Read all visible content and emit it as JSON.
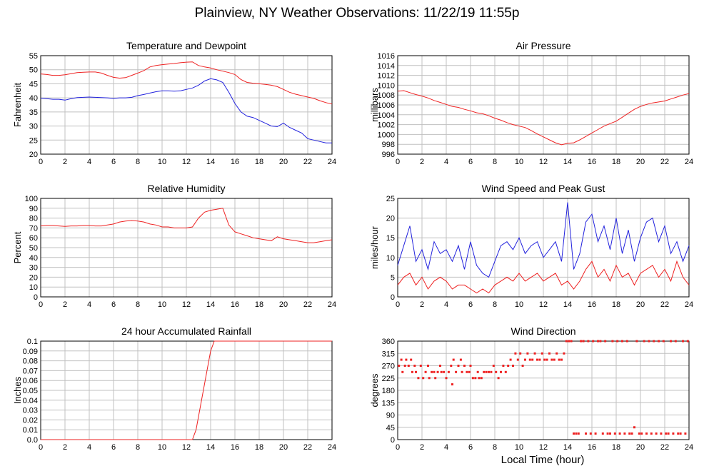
{
  "title": "Plainview, NY Weather Observations: 11/22/19 11:55p",
  "x_common_label": "Local Time (hour)",
  "colors": {
    "red": "#ee2222",
    "blue": "#2222dd"
  },
  "chart_data": [
    {
      "id": "temp",
      "type": "line",
      "title": "Temperature and Dewpoint",
      "ylabel": "Fahrenheit",
      "xlim": [
        0,
        24
      ],
      "ylim": [
        20,
        55
      ],
      "xticks": [
        0,
        2,
        4,
        6,
        8,
        10,
        12,
        14,
        16,
        18,
        20,
        22,
        24
      ],
      "yticks": [
        20,
        25,
        30,
        35,
        40,
        45,
        50,
        55
      ],
      "x": [
        0,
        0.5,
        1,
        1.5,
        2,
        2.5,
        3,
        3.5,
        4,
        4.5,
        5,
        5.5,
        6,
        6.5,
        7,
        7.5,
        8,
        8.5,
        9,
        9.5,
        10,
        10.5,
        11,
        11.5,
        12,
        12.5,
        13,
        13.5,
        14,
        14.5,
        15,
        15.5,
        16,
        16.5,
        17,
        17.5,
        18,
        18.5,
        19,
        19.5,
        20,
        20.5,
        21,
        21.5,
        22,
        22.5,
        23,
        23.5,
        24
      ],
      "series": [
        {
          "name": "",
          "color": "#ee2222",
          "values": [
            48.5,
            48.3,
            48,
            48,
            48.2,
            48.6,
            49,
            49.1,
            49.2,
            49.2,
            48.8,
            48,
            47.3,
            47,
            47.2,
            48,
            48.8,
            49.7,
            51,
            51.5,
            51.8,
            52,
            52.2,
            52.5,
            52.7,
            52.8,
            51.5,
            51,
            50.6,
            50,
            49.5,
            49,
            48.3,
            46.5,
            45.5,
            45.2,
            45,
            44.8,
            44.5,
            44,
            43,
            42,
            41.3,
            40.8,
            40.3,
            39.8,
            39,
            38.3,
            37.8
          ]
        },
        {
          "name": "",
          "color": "#2222dd",
          "values": [
            39.9,
            39.7,
            39.5,
            39.5,
            39.2,
            39.7,
            40.1,
            40.2,
            40.3,
            40.2,
            40.1,
            40,
            39.8,
            40,
            40,
            40.2,
            40.8,
            41.2,
            41.7,
            42.2,
            42.5,
            42.5,
            42.4,
            42.5,
            43,
            43.5,
            44.5,
            46,
            46.8,
            46.4,
            45.5,
            42,
            38,
            35,
            33.5,
            33,
            32,
            31,
            30,
            29.8,
            31,
            29.5,
            28.5,
            27.5,
            25.5,
            25,
            24.5,
            24,
            24
          ]
        }
      ]
    },
    {
      "id": "pressure",
      "type": "line",
      "title": "Air Pressure",
      "ylabel": "millibars",
      "xlim": [
        0,
        24
      ],
      "ylim": [
        996,
        1016
      ],
      "xticks": [
        0,
        2,
        4,
        6,
        8,
        10,
        12,
        14,
        16,
        18,
        20,
        22,
        24
      ],
      "yticks": [
        996,
        998,
        1000,
        1002,
        1004,
        1006,
        1008,
        1010,
        1012,
        1014,
        1016
      ],
      "x": [
        0,
        0.5,
        1,
        1.5,
        2,
        2.5,
        3,
        3.5,
        4,
        4.5,
        5,
        5.5,
        6,
        6.5,
        7,
        7.5,
        8,
        8.5,
        9,
        9.5,
        10,
        10.5,
        11,
        11.5,
        12,
        12.5,
        13,
        13.5,
        14,
        14.5,
        15,
        15.5,
        16,
        16.5,
        17,
        17.5,
        18,
        18.5,
        19,
        19.5,
        20,
        20.5,
        21,
        21.5,
        22,
        22.5,
        23,
        23.5,
        24
      ],
      "series": [
        {
          "name": "",
          "color": "#ee2222",
          "values": [
            1008.8,
            1008.9,
            1008.5,
            1008.1,
            1007.8,
            1007.4,
            1006.9,
            1006.5,
            1006.1,
            1005.7,
            1005.5,
            1005.1,
            1004.8,
            1004.4,
            1004.2,
            1003.8,
            1003.3,
            1002.9,
            1002.4,
            1002,
            1001.7,
            1001.4,
            1000.8,
            1000.1,
            999.5,
            998.9,
            998.3,
            997.9,
            998.2,
            998.3,
            998.9,
            999.6,
            1000.3,
            1001,
            1001.7,
            1002.2,
            1002.7,
            1003.5,
            1004.3,
            1005.1,
            1005.7,
            1006.1,
            1006.4,
            1006.6,
            1006.8,
            1007.2,
            1007.6,
            1008,
            1008.3
          ]
        }
      ]
    },
    {
      "id": "humidity",
      "type": "line",
      "title": "Relative Humidity",
      "ylabel": "Percent",
      "xlim": [
        0,
        24
      ],
      "ylim": [
        0,
        100
      ],
      "xticks": [
        0,
        2,
        4,
        6,
        8,
        10,
        12,
        14,
        16,
        18,
        20,
        22,
        24
      ],
      "yticks": [
        0,
        10,
        20,
        30,
        40,
        50,
        60,
        70,
        80,
        90,
        100
      ],
      "x": [
        0,
        0.5,
        1,
        1.5,
        2,
        2.5,
        3,
        3.5,
        4,
        4.5,
        5,
        5.5,
        6,
        6.5,
        7,
        7.5,
        8,
        8.5,
        9,
        9.5,
        10,
        10.5,
        11,
        11.5,
        12,
        12.5,
        13,
        13.5,
        14,
        14.5,
        15,
        15.5,
        16,
        16.5,
        17,
        17.5,
        18,
        18.5,
        19,
        19.5,
        20,
        20.5,
        21,
        21.5,
        22,
        22.5,
        23,
        23.5,
        24
      ],
      "series": [
        {
          "name": "",
          "color": "#ee2222",
          "values": [
            72,
            72.5,
            72.5,
            72,
            71.5,
            72,
            72,
            72.5,
            72.5,
            72,
            72,
            73,
            74,
            76,
            77,
            77.5,
            77,
            76,
            74,
            73,
            71,
            71,
            70,
            70,
            70,
            71,
            80,
            86,
            88,
            89,
            90,
            73,
            66,
            64,
            62,
            60,
            59,
            58,
            57,
            61,
            59,
            58,
            57,
            56,
            55,
            55,
            56,
            57,
            58
          ]
        }
      ]
    },
    {
      "id": "wind",
      "type": "line",
      "title": "Wind Speed and Peak Gust",
      "ylabel": "miles/hour",
      "xlim": [
        0,
        24
      ],
      "ylim": [
        0,
        25
      ],
      "xticks": [
        0,
        2,
        4,
        6,
        8,
        10,
        12,
        14,
        16,
        18,
        20,
        22,
        24
      ],
      "yticks": [
        0,
        5,
        10,
        15,
        20,
        25
      ],
      "x": [
        0,
        0.5,
        1,
        1.5,
        2,
        2.5,
        3,
        3.5,
        4,
        4.5,
        5,
        5.5,
        6,
        6.5,
        7,
        7.5,
        8,
        8.5,
        9,
        9.5,
        10,
        10.5,
        11,
        11.5,
        12,
        12.5,
        13,
        13.5,
        14,
        14.5,
        15,
        15.5,
        16,
        16.5,
        17,
        17.5,
        18,
        18.5,
        19,
        19.5,
        20,
        20.5,
        21,
        21.5,
        22,
        22.5,
        23,
        23.5,
        24
      ],
      "series": [
        {
          "name": "",
          "color": "#2222dd",
          "values": [
            8,
            13,
            18,
            9,
            12,
            7,
            14,
            11,
            12,
            9,
            13,
            7,
            14,
            8,
            6,
            5,
            9,
            13,
            14,
            12,
            15,
            11,
            13,
            14,
            10,
            12,
            14,
            9,
            24,
            7,
            11,
            19,
            21,
            14,
            18,
            12,
            20,
            11,
            17,
            9,
            15,
            19,
            20,
            14,
            18,
            11,
            14,
            9,
            13
          ]
        },
        {
          "name": "",
          "color": "#ee2222",
          "values": [
            3,
            5,
            6,
            3,
            5,
            2,
            4,
            5,
            4,
            2,
            3,
            3,
            2,
            1,
            2,
            1,
            3,
            4,
            5,
            4,
            6,
            4,
            5,
            6,
            4,
            5,
            6,
            3,
            4,
            2,
            4,
            7,
            9,
            5,
            7,
            4,
            8,
            5,
            6,
            3,
            6,
            7,
            8,
            5,
            7,
            4,
            9,
            5,
            3
          ]
        }
      ]
    },
    {
      "id": "rain",
      "type": "line",
      "title": "24 hour Accumulated Rainfall",
      "ylabel": "Inches",
      "xlim": [
        0,
        24
      ],
      "ylim": [
        0,
        0.1
      ],
      "xticks": [
        0,
        2,
        4,
        6,
        8,
        10,
        12,
        14,
        16,
        18,
        20,
        22,
        24
      ],
      "yticks": [
        0,
        0.01,
        0.02,
        0.03,
        0.04,
        0.05,
        0.06,
        0.07,
        0.08,
        0.09,
        0.1
      ],
      "ytick_labels": [
        "0.0",
        "0.01",
        "0.02",
        "0.03",
        "0.04",
        "0.05",
        "0.06",
        "0.07",
        "0.08",
        "0.09",
        "0.1"
      ],
      "x": [
        0,
        12.5,
        12.8,
        13.1,
        13.4,
        13.7,
        14,
        14.3,
        24
      ],
      "series": [
        {
          "name": "",
          "color": "#ee2222",
          "values": [
            0,
            0,
            0.01,
            0.03,
            0.05,
            0.07,
            0.09,
            0.1,
            0.1
          ]
        }
      ]
    },
    {
      "id": "direction",
      "type": "scatter",
      "title": "Wind Direction",
      "ylabel": "degrees",
      "xlim": [
        0,
        24
      ],
      "ylim": [
        0,
        360
      ],
      "xticks": [
        0,
        2,
        4,
        6,
        8,
        10,
        12,
        14,
        16,
        18,
        20,
        22,
        24
      ],
      "yticks": [
        0,
        45,
        90,
        135,
        180,
        225,
        270,
        315,
        360
      ],
      "points_y": [
        [
          0.1,
          270
        ],
        [
          0.3,
          292
        ],
        [
          0.4,
          247
        ],
        [
          0.6,
          270
        ],
        [
          0.7,
          292
        ],
        [
          0.9,
          270
        ],
        [
          1.1,
          292
        ],
        [
          1.2,
          247
        ],
        [
          1.4,
          270
        ],
        [
          1.5,
          247
        ],
        [
          1.7,
          225
        ],
        [
          1.9,
          270
        ],
        [
          2.1,
          225
        ],
        [
          2.3,
          247
        ],
        [
          2.5,
          270
        ],
        [
          2.6,
          225
        ],
        [
          2.8,
          247
        ],
        [
          3,
          247
        ],
        [
          3.1,
          225
        ],
        [
          3.3,
          247
        ],
        [
          3.5,
          270
        ],
        [
          3.6,
          247
        ],
        [
          3.8,
          247
        ],
        [
          4,
          225
        ],
        [
          4.2,
          247
        ],
        [
          4.4,
          270
        ],
        [
          4.5,
          202
        ],
        [
          4.6,
          292
        ],
        [
          4.8,
          247
        ],
        [
          5,
          270
        ],
        [
          5.2,
          292
        ],
        [
          5.3,
          247
        ],
        [
          5.5,
          270
        ],
        [
          5.7,
          247
        ],
        [
          5.9,
          247
        ],
        [
          6,
          270
        ],
        [
          6.2,
          225
        ],
        [
          6.4,
          225
        ],
        [
          6.6,
          247
        ],
        [
          6.7,
          225
        ],
        [
          6.9,
          225
        ],
        [
          7.1,
          247
        ],
        [
          7.3,
          247
        ],
        [
          7.5,
          247
        ],
        [
          7.7,
          247
        ],
        [
          7.9,
          270
        ],
        [
          8.1,
          247
        ],
        [
          8.3,
          225
        ],
        [
          8.5,
          247
        ],
        [
          8.7,
          270
        ],
        [
          8.9,
          247
        ],
        [
          9.1,
          270
        ],
        [
          9.3,
          292
        ],
        [
          9.5,
          270
        ],
        [
          9.7,
          315
        ],
        [
          9.9,
          292
        ],
        [
          10.1,
          315
        ],
        [
          10.3,
          270
        ],
        [
          10.5,
          292
        ],
        [
          10.7,
          315
        ],
        [
          10.9,
          292
        ],
        [
          11.1,
          292
        ],
        [
          11.3,
          315
        ],
        [
          11.5,
          292
        ],
        [
          11.7,
          292
        ],
        [
          11.9,
          315
        ],
        [
          12.1,
          292
        ],
        [
          12.3,
          292
        ],
        [
          12.5,
          315
        ],
        [
          12.7,
          292
        ],
        [
          12.9,
          292
        ],
        [
          13.1,
          315
        ],
        [
          13.3,
          292
        ],
        [
          13.5,
          292
        ],
        [
          13.7,
          315
        ],
        [
          13.9,
          360
        ],
        [
          14.1,
          360
        ],
        [
          14.3,
          360
        ],
        [
          14.5,
          22
        ],
        [
          14.7,
          22
        ],
        [
          14.9,
          22
        ],
        [
          15.1,
          360
        ],
        [
          15.3,
          360
        ],
        [
          15.5,
          22
        ],
        [
          15.7,
          360
        ],
        [
          15.9,
          22
        ],
        [
          16.1,
          360
        ],
        [
          16.3,
          22
        ],
        [
          16.5,
          360
        ],
        [
          16.7,
          360
        ],
        [
          16.9,
          22
        ],
        [
          17.1,
          360
        ],
        [
          17.3,
          22
        ],
        [
          17.5,
          22
        ],
        [
          17.7,
          360
        ],
        [
          17.9,
          22
        ],
        [
          18.1,
          360
        ],
        [
          18.3,
          22
        ],
        [
          18.5,
          360
        ],
        [
          18.7,
          22
        ],
        [
          18.9,
          360
        ],
        [
          19.1,
          22
        ],
        [
          19.3,
          22
        ],
        [
          19.5,
          45
        ],
        [
          19.7,
          360
        ],
        [
          19.9,
          22
        ],
        [
          20.1,
          22
        ],
        [
          20.3,
          360
        ],
        [
          20.5,
          22
        ],
        [
          20.7,
          360
        ],
        [
          20.9,
          22
        ],
        [
          21.1,
          360
        ],
        [
          21.3,
          22
        ],
        [
          21.5,
          360
        ],
        [
          21.7,
          22
        ],
        [
          21.9,
          360
        ],
        [
          22.1,
          22
        ],
        [
          22.3,
          22
        ],
        [
          22.5,
          360
        ],
        [
          22.7,
          22
        ],
        [
          22.9,
          360
        ],
        [
          23.1,
          22
        ],
        [
          23.3,
          22
        ],
        [
          23.5,
          360
        ],
        [
          23.7,
          22
        ],
        [
          23.9,
          360
        ]
      ],
      "color": "#ee2222"
    }
  ]
}
